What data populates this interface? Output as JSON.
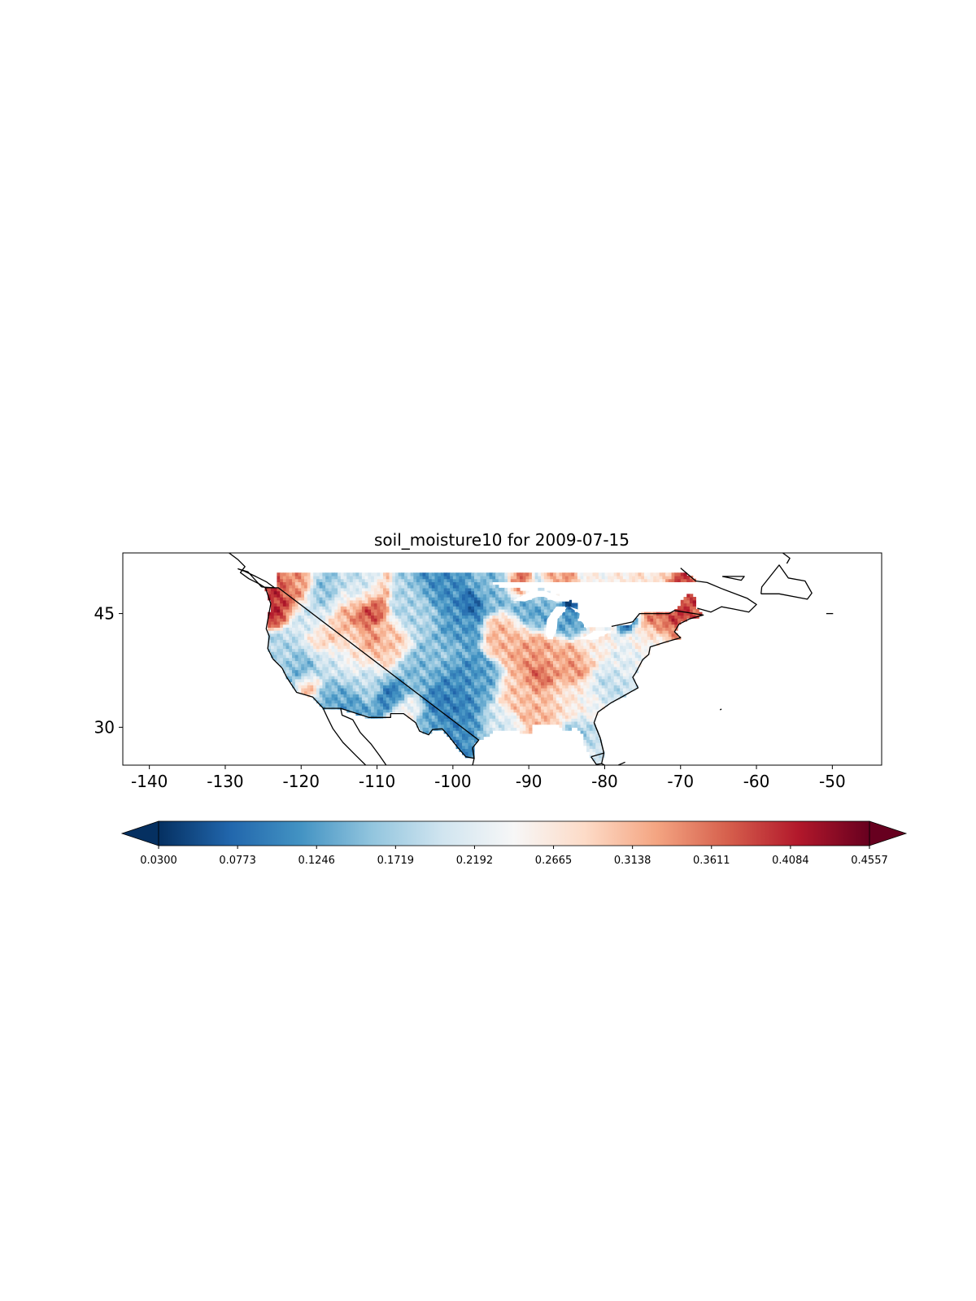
{
  "map": {
    "title": "soil_moisture10 for 2009-07-15",
    "variable": "soil_moisture10",
    "date": "2009-07-15",
    "projection": "PlateCarree",
    "extent": {
      "lon": [
        -143.5,
        -43.5
      ],
      "lat": [
        25,
        53
      ]
    },
    "lon_ticks": [
      -140,
      -130,
      -120,
      -110,
      -100,
      -90,
      -80,
      -70,
      -60,
      -50
    ],
    "lat_ticks": [
      30,
      45
    ],
    "lon_tick_labels": [
      "-140",
      "-130",
      "-120",
      "-110",
      "-100",
      "-90",
      "-80",
      "-70",
      "-60",
      "-50"
    ],
    "lat_tick_labels": [
      "30",
      "45"
    ],
    "coastline_color": "#000000",
    "missing_color": "#ffffff",
    "data_coverage": "contiguous United States, north to about 50N",
    "spatial_pattern": [
      {
        "region": "Pacific Northwest coast",
        "level": "high"
      },
      {
        "region": "Northern Rockies",
        "level": "moderately high"
      },
      {
        "region": "Great Basin / Southwest",
        "level": "low"
      },
      {
        "region": "Southern Great Plains / Texas",
        "level": "low"
      },
      {
        "region": "Northern Plains",
        "level": "low"
      },
      {
        "region": "Midwest / Ohio Valley",
        "level": "moderately high"
      },
      {
        "region": "Upper Great Lakes / Michigan",
        "level": "low"
      },
      {
        "region": "Northeast / New England",
        "level": "high"
      },
      {
        "region": "Southeast / Florida",
        "level": "mid to low"
      }
    ]
  },
  "colorbar": {
    "colormap": "RdBu_r",
    "extend": "both",
    "min": 0.03,
    "max": 0.4557,
    "ticks": [
      0.03,
      0.0773,
      0.1246,
      0.1719,
      0.2192,
      0.2665,
      0.3138,
      0.3611,
      0.4084,
      0.4557
    ],
    "tick_labels": [
      "0.0300",
      "0.0773",
      "0.1246",
      "0.1719",
      "0.2192",
      "0.2665",
      "0.3138",
      "0.3611",
      "0.4084",
      "0.4557"
    ],
    "colors": [
      "#053061",
      "#2166ac",
      "#4393c3",
      "#92c5de",
      "#d1e5f0",
      "#f7f7f7",
      "#fddbc7",
      "#f4a582",
      "#d6604d",
      "#b2182b",
      "#67001f"
    ]
  }
}
